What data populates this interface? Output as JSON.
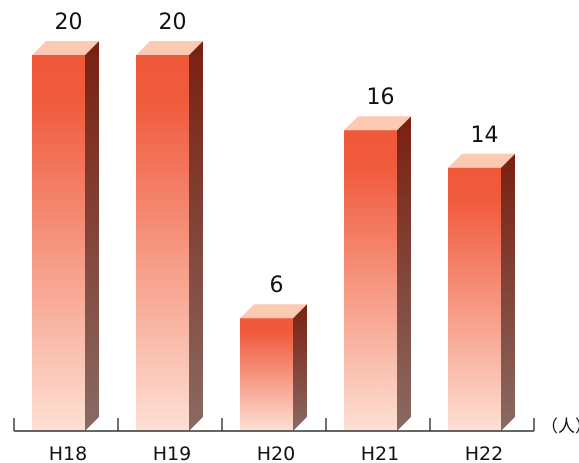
{
  "chart_data": {
    "type": "bar",
    "categories": [
      "H18",
      "H19",
      "H20",
      "H21",
      "H22"
    ],
    "values": [
      20,
      20,
      6,
      16,
      14
    ],
    "title": "",
    "xlabel": "",
    "ylabel": "",
    "unit": "（人）",
    "ylim": [
      0,
      20
    ],
    "grid": false,
    "legend": "none",
    "colors": {
      "front_top": "#f0583a",
      "front_bottom": "#fde0d4",
      "side_top": "#7a2010",
      "side_bottom": "#8a6a63",
      "top_face": "#fcc9b3",
      "axis": "#333333"
    }
  }
}
